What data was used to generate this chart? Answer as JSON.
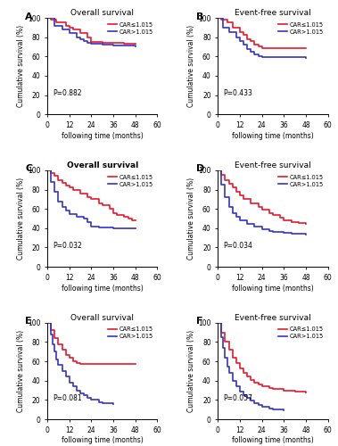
{
  "panels": [
    {
      "label": "A",
      "title": "Overall survival",
      "title_bold": false,
      "pvalue": "P=0.882",
      "red_curve": [
        [
          0,
          1.0
        ],
        [
          2,
          0.98
        ],
        [
          5,
          0.95
        ],
        [
          10,
          0.92
        ],
        [
          12,
          0.9
        ],
        [
          14,
          0.88
        ],
        [
          18,
          0.84
        ],
        [
          22,
          0.8
        ],
        [
          24,
          0.75
        ],
        [
          30,
          0.74
        ],
        [
          36,
          0.74
        ],
        [
          42,
          0.73
        ],
        [
          48,
          0.73
        ]
      ],
      "blue_curve": [
        [
          0,
          1.0
        ],
        [
          4,
          0.92
        ],
        [
          8,
          0.88
        ],
        [
          12,
          0.84
        ],
        [
          16,
          0.8
        ],
        [
          18,
          0.78
        ],
        [
          20,
          0.76
        ],
        [
          22,
          0.74
        ],
        [
          24,
          0.73
        ],
        [
          30,
          0.72
        ],
        [
          36,
          0.71
        ],
        [
          42,
          0.71
        ],
        [
          48,
          0.7
        ]
      ]
    },
    {
      "label": "B",
      "title": "Event-free survival",
      "title_bold": false,
      "pvalue": "P=0.433",
      "red_curve": [
        [
          0,
          1.0
        ],
        [
          2,
          0.98
        ],
        [
          5,
          0.95
        ],
        [
          8,
          0.9
        ],
        [
          12,
          0.85
        ],
        [
          14,
          0.82
        ],
        [
          16,
          0.78
        ],
        [
          18,
          0.76
        ],
        [
          20,
          0.72
        ],
        [
          22,
          0.7
        ],
        [
          24,
          0.69
        ],
        [
          30,
          0.69
        ],
        [
          36,
          0.69
        ],
        [
          42,
          0.69
        ],
        [
          48,
          0.69
        ]
      ],
      "blue_curve": [
        [
          0,
          1.0
        ],
        [
          3,
          0.9
        ],
        [
          6,
          0.85
        ],
        [
          10,
          0.8
        ],
        [
          12,
          0.76
        ],
        [
          14,
          0.72
        ],
        [
          16,
          0.68
        ],
        [
          18,
          0.65
        ],
        [
          20,
          0.62
        ],
        [
          22,
          0.6
        ],
        [
          24,
          0.59
        ],
        [
          30,
          0.59
        ],
        [
          36,
          0.59
        ],
        [
          42,
          0.59
        ],
        [
          48,
          0.58
        ]
      ]
    },
    {
      "label": "C",
      "title": "Overall survival",
      "title_bold": true,
      "pvalue": "P=0.032",
      "red_curve": [
        [
          0,
          1.0
        ],
        [
          2,
          0.97
        ],
        [
          4,
          0.94
        ],
        [
          6,
          0.9
        ],
        [
          8,
          0.87
        ],
        [
          10,
          0.84
        ],
        [
          12,
          0.82
        ],
        [
          14,
          0.8
        ],
        [
          18,
          0.76
        ],
        [
          22,
          0.72
        ],
        [
          24,
          0.7
        ],
        [
          28,
          0.66
        ],
        [
          30,
          0.64
        ],
        [
          34,
          0.6
        ],
        [
          36,
          0.56
        ],
        [
          38,
          0.54
        ],
        [
          42,
          0.52
        ],
        [
          44,
          0.5
        ],
        [
          46,
          0.48
        ],
        [
          48,
          0.48
        ]
      ],
      "blue_curve": [
        [
          0,
          1.0
        ],
        [
          2,
          0.88
        ],
        [
          4,
          0.78
        ],
        [
          6,
          0.68
        ],
        [
          8,
          0.62
        ],
        [
          10,
          0.58
        ],
        [
          12,
          0.55
        ],
        [
          16,
          0.52
        ],
        [
          20,
          0.5
        ],
        [
          22,
          0.46
        ],
        [
          24,
          0.42
        ],
        [
          28,
          0.41
        ],
        [
          30,
          0.41
        ],
        [
          36,
          0.4
        ],
        [
          40,
          0.4
        ],
        [
          48,
          0.4
        ]
      ]
    },
    {
      "label": "D",
      "title": "Event-free survival",
      "title_bold": false,
      "pvalue": "P=0.034",
      "red_curve": [
        [
          0,
          1.0
        ],
        [
          2,
          0.95
        ],
        [
          4,
          0.9
        ],
        [
          6,
          0.86
        ],
        [
          8,
          0.82
        ],
        [
          10,
          0.78
        ],
        [
          12,
          0.74
        ],
        [
          14,
          0.7
        ],
        [
          18,
          0.66
        ],
        [
          22,
          0.62
        ],
        [
          24,
          0.59
        ],
        [
          28,
          0.56
        ],
        [
          30,
          0.54
        ],
        [
          34,
          0.51
        ],
        [
          36,
          0.48
        ],
        [
          40,
          0.46
        ],
        [
          44,
          0.45
        ],
        [
          48,
          0.44
        ]
      ],
      "blue_curve": [
        [
          0,
          1.0
        ],
        [
          2,
          0.85
        ],
        [
          4,
          0.72
        ],
        [
          6,
          0.62
        ],
        [
          8,
          0.56
        ],
        [
          10,
          0.52
        ],
        [
          12,
          0.48
        ],
        [
          16,
          0.44
        ],
        [
          20,
          0.42
        ],
        [
          24,
          0.39
        ],
        [
          28,
          0.37
        ],
        [
          30,
          0.36
        ],
        [
          36,
          0.35
        ],
        [
          40,
          0.34
        ],
        [
          48,
          0.33
        ]
      ]
    },
    {
      "label": "E",
      "title": "Overall survival",
      "title_bold": false,
      "pvalue": "P=0.081",
      "red_curve": [
        [
          0,
          1.0
        ],
        [
          2,
          0.92
        ],
        [
          4,
          0.84
        ],
        [
          6,
          0.78
        ],
        [
          8,
          0.72
        ],
        [
          10,
          0.67
        ],
        [
          12,
          0.64
        ],
        [
          14,
          0.6
        ],
        [
          16,
          0.58
        ],
        [
          18,
          0.57
        ],
        [
          20,
          0.57
        ],
        [
          24,
          0.57
        ],
        [
          30,
          0.57
        ],
        [
          36,
          0.57
        ],
        [
          42,
          0.57
        ],
        [
          48,
          0.57
        ]
      ],
      "blue_curve": [
        [
          0,
          1.0
        ],
        [
          2,
          0.88
        ],
        [
          3,
          0.78
        ],
        [
          4,
          0.7
        ],
        [
          5,
          0.62
        ],
        [
          6,
          0.56
        ],
        [
          8,
          0.5
        ],
        [
          10,
          0.44
        ],
        [
          12,
          0.38
        ],
        [
          14,
          0.34
        ],
        [
          16,
          0.3
        ],
        [
          18,
          0.27
        ],
        [
          20,
          0.25
        ],
        [
          22,
          0.22
        ],
        [
          24,
          0.2
        ],
        [
          28,
          0.18
        ],
        [
          30,
          0.17
        ],
        [
          36,
          0.16
        ]
      ]
    },
    {
      "label": "F",
      "title": "Event-free survival",
      "title_bold": false,
      "pvalue": "P=0.057",
      "red_curve": [
        [
          0,
          1.0
        ],
        [
          2,
          0.9
        ],
        [
          4,
          0.8
        ],
        [
          6,
          0.72
        ],
        [
          8,
          0.64
        ],
        [
          10,
          0.58
        ],
        [
          12,
          0.53
        ],
        [
          14,
          0.48
        ],
        [
          16,
          0.44
        ],
        [
          18,
          0.41
        ],
        [
          20,
          0.38
        ],
        [
          22,
          0.36
        ],
        [
          24,
          0.34
        ],
        [
          28,
          0.32
        ],
        [
          30,
          0.31
        ],
        [
          36,
          0.3
        ],
        [
          42,
          0.29
        ],
        [
          48,
          0.28
        ]
      ],
      "blue_curve": [
        [
          0,
          1.0
        ],
        [
          2,
          0.85
        ],
        [
          3,
          0.74
        ],
        [
          4,
          0.64
        ],
        [
          5,
          0.55
        ],
        [
          6,
          0.48
        ],
        [
          8,
          0.4
        ],
        [
          10,
          0.34
        ],
        [
          12,
          0.29
        ],
        [
          14,
          0.25
        ],
        [
          16,
          0.22
        ],
        [
          18,
          0.19
        ],
        [
          20,
          0.17
        ],
        [
          22,
          0.15
        ],
        [
          24,
          0.13
        ],
        [
          28,
          0.11
        ],
        [
          30,
          0.1
        ],
        [
          36,
          0.09
        ]
      ]
    }
  ],
  "red_color": "#e8192c",
  "blue_color": "#3333cc",
  "legend_red": "CAR≤1.015",
  "legend_blue": "CAR>1.015",
  "xlabel": "following time (months)",
  "ylabel": "Cumulative survival (%)",
  "xlim": [
    0,
    60
  ],
  "ylim": [
    0,
    100
  ],
  "xticks": [
    0,
    12,
    24,
    36,
    48,
    60
  ],
  "yticks": [
    0,
    20,
    40,
    60,
    80,
    100
  ]
}
